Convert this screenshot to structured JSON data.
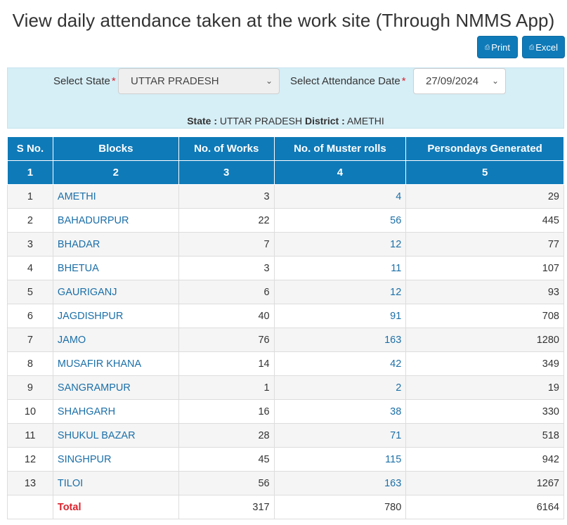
{
  "page": {
    "title": "View daily attendance taken at the work site (Through NMMS App)"
  },
  "toolbar": {
    "print_label": "Print",
    "excel_label": "Excel",
    "print_icon": "print-icon",
    "excel_icon": "excel-icon"
  },
  "filters": {
    "state_label": "Select State",
    "state_value": "UTTAR PRADESH",
    "date_label": "Select Attendance Date",
    "date_value": "27/09/2024",
    "required_mark": "*",
    "summary_state_label": "State :",
    "summary_state_value": "UTTAR PRADESH",
    "summary_district_label": "District :",
    "summary_district_value": "AMETHI"
  },
  "table": {
    "headers": [
      "S No.",
      "Blocks",
      "No. of Works",
      "No. of Muster rolls",
      "Persondays Generated"
    ],
    "col_numbers": [
      "1",
      "2",
      "3",
      "4",
      "5"
    ],
    "rows": [
      {
        "sno": "1",
        "block": "AMETHI",
        "works": "3",
        "musters": "4",
        "persondays": "29"
      },
      {
        "sno": "2",
        "block": "BAHADURPUR",
        "works": "22",
        "musters": "56",
        "persondays": "445"
      },
      {
        "sno": "3",
        "block": "BHADAR",
        "works": "7",
        "musters": "12",
        "persondays": "77"
      },
      {
        "sno": "4",
        "block": "BHETUA",
        "works": "3",
        "musters": "11",
        "persondays": "107"
      },
      {
        "sno": "5",
        "block": "GAURIGANJ",
        "works": "6",
        "musters": "12",
        "persondays": "93"
      },
      {
        "sno": "6",
        "block": "JAGDISHPUR",
        "works": "40",
        "musters": "91",
        "persondays": "708"
      },
      {
        "sno": "7",
        "block": "JAMO",
        "works": "76",
        "musters": "163",
        "persondays": "1280"
      },
      {
        "sno": "8",
        "block": "MUSAFIR KHANA",
        "works": "14",
        "musters": "42",
        "persondays": "349"
      },
      {
        "sno": "9",
        "block": "SANGRAMPUR",
        "works": "1",
        "musters": "2",
        "persondays": "19"
      },
      {
        "sno": "10",
        "block": "SHAHGARH",
        "works": "16",
        "musters": "38",
        "persondays": "330"
      },
      {
        "sno": "11",
        "block": "SHUKUL BAZAR",
        "works": "28",
        "musters": "71",
        "persondays": "518"
      },
      {
        "sno": "12",
        "block": "SINGHPUR",
        "works": "45",
        "musters": "115",
        "persondays": "942"
      },
      {
        "sno": "13",
        "block": "TILOI",
        "works": "56",
        "musters": "163",
        "persondays": "1267"
      }
    ],
    "total": {
      "label": "Total",
      "works": "317",
      "musters": "780",
      "persondays": "6164"
    }
  },
  "colors": {
    "primary": "#0f7ab8",
    "panel_bg": "#d6eef6",
    "link": "#1b6fa8",
    "required": "#d9232d"
  }
}
